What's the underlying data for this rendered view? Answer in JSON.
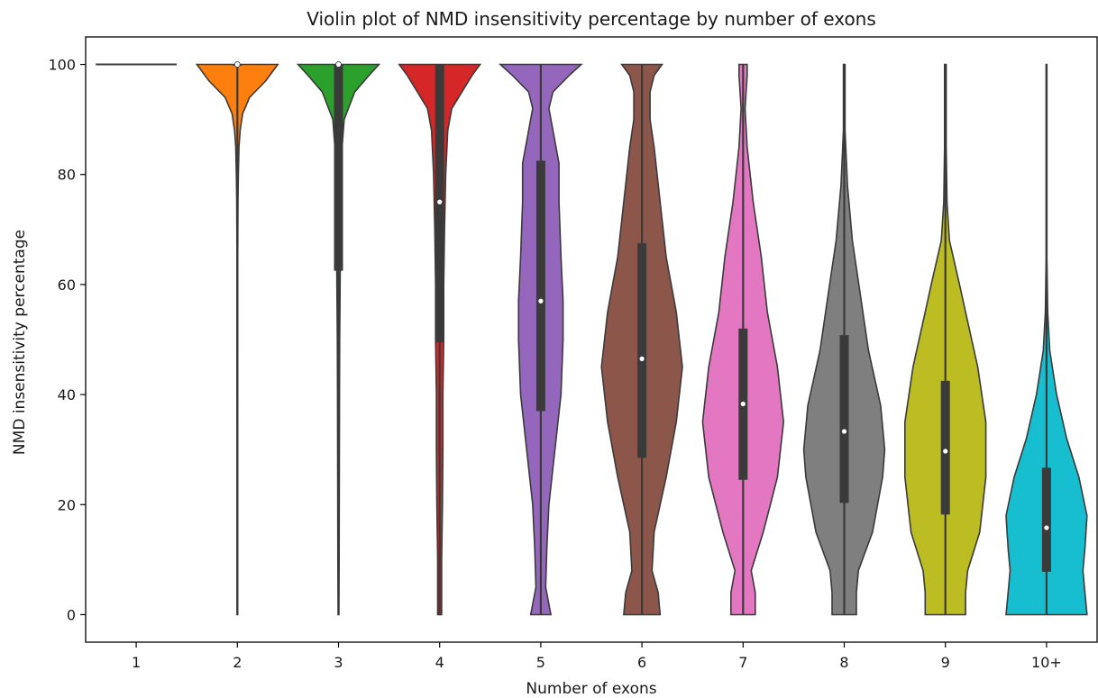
{
  "chart_data": {
    "type": "violin",
    "title": "Violin plot of NMD insensitivity percentage by number of exons",
    "xlabel": "Number of exons",
    "ylabel": "NMD insensitivity percentage",
    "ylim": [
      -5,
      105
    ],
    "yticks": [
      0,
      20,
      40,
      60,
      80,
      100
    ],
    "grid": false,
    "categories": [
      "1",
      "2",
      "3",
      "4",
      "5",
      "6",
      "7",
      "8",
      "9",
      "10+"
    ],
    "colors": [
      "#1f77b4",
      "#ff7f0e",
      "#2ca02c",
      "#d62728",
      "#9467bd",
      "#8c564b",
      "#e377c2",
      "#7f7f7f",
      "#bcbd22",
      "#17becf"
    ],
    "violins": [
      {
        "category": "1",
        "median": 100,
        "q1": 100,
        "q3": 100,
        "min": 100,
        "max": 100,
        "density": []
      },
      {
        "category": "2",
        "median": 100,
        "q1": 100,
        "q3": 100,
        "min": 0,
        "max": 100,
        "density": [
          [
            0,
            0.006
          ],
          [
            10,
            0.006
          ],
          [
            30,
            0.007
          ],
          [
            50,
            0.008
          ],
          [
            65,
            0.01
          ],
          [
            75,
            0.015
          ],
          [
            80,
            0.025
          ],
          [
            85,
            0.04
          ],
          [
            88,
            0.07
          ],
          [
            91,
            0.13
          ],
          [
            94,
            0.3
          ],
          [
            97,
            0.7
          ],
          [
            100,
            1.0
          ]
        ]
      },
      {
        "category": "3",
        "median": 100,
        "q1": 62.5,
        "q3": 100,
        "min": 0,
        "max": 100,
        "density": [
          [
            0,
            0.01
          ],
          [
            10,
            0.015
          ],
          [
            25,
            0.02
          ],
          [
            40,
            0.025
          ],
          [
            50,
            0.03
          ],
          [
            60,
            0.04
          ],
          [
            70,
            0.05
          ],
          [
            80,
            0.07
          ],
          [
            85,
            0.09
          ],
          [
            90,
            0.14
          ],
          [
            95,
            0.4
          ],
          [
            98,
            0.75
          ],
          [
            100,
            1.0
          ]
        ]
      },
      {
        "category": "4",
        "median": 75,
        "q1": 49.5,
        "q3": 100,
        "min": 0,
        "max": 100,
        "density": [
          [
            0,
            0.05
          ],
          [
            10,
            0.05
          ],
          [
            20,
            0.07
          ],
          [
            30,
            0.08
          ],
          [
            40,
            0.08
          ],
          [
            50,
            0.1
          ],
          [
            60,
            0.1
          ],
          [
            70,
            0.12
          ],
          [
            80,
            0.15
          ],
          [
            88,
            0.2
          ],
          [
            92,
            0.3
          ],
          [
            95,
            0.55
          ],
          [
            98,
            0.8
          ],
          [
            100,
            1.0
          ]
        ]
      },
      {
        "category": "5",
        "median": 57,
        "q1": 37,
        "q3": 82.5,
        "min": 0,
        "max": 100,
        "density": [
          [
            0,
            0.25
          ],
          [
            5,
            0.12
          ],
          [
            12,
            0.15
          ],
          [
            20,
            0.2
          ],
          [
            30,
            0.35
          ],
          [
            40,
            0.5
          ],
          [
            50,
            0.55
          ],
          [
            57,
            0.55
          ],
          [
            65,
            0.5
          ],
          [
            75,
            0.45
          ],
          [
            82,
            0.45
          ],
          [
            88,
            0.3
          ],
          [
            92,
            0.2
          ],
          [
            95,
            0.3
          ],
          [
            98,
            0.7
          ],
          [
            100,
            1.0
          ]
        ]
      },
      {
        "category": "6",
        "median": 46.5,
        "q1": 28.5,
        "q3": 67.5,
        "min": 0,
        "max": 100,
        "density": [
          [
            0,
            0.45
          ],
          [
            4,
            0.4
          ],
          [
            8,
            0.25
          ],
          [
            15,
            0.3
          ],
          [
            25,
            0.6
          ],
          [
            35,
            0.85
          ],
          [
            45,
            1.0
          ],
          [
            55,
            0.85
          ],
          [
            65,
            0.6
          ],
          [
            75,
            0.45
          ],
          [
            85,
            0.3
          ],
          [
            90,
            0.2
          ],
          [
            95,
            0.2
          ],
          [
            98,
            0.3
          ],
          [
            100,
            0.5
          ]
        ]
      },
      {
        "category": "7",
        "median": 38.3,
        "q1": 24.5,
        "q3": 52,
        "min": 0,
        "max": 100,
        "density": [
          [
            0,
            0.3
          ],
          [
            4,
            0.3
          ],
          [
            8,
            0.2
          ],
          [
            15,
            0.5
          ],
          [
            25,
            0.85
          ],
          [
            35,
            1.0
          ],
          [
            45,
            0.85
          ],
          [
            55,
            0.6
          ],
          [
            65,
            0.45
          ],
          [
            75,
            0.25
          ],
          [
            85,
            0.1
          ],
          [
            92,
            0.05
          ],
          [
            98,
            0.1
          ],
          [
            100,
            0.1
          ]
        ]
      },
      {
        "category": "8",
        "median": 33.3,
        "q1": 20.3,
        "q3": 50.8,
        "min": 0,
        "max": 100,
        "density": [
          [
            0,
            0.3
          ],
          [
            4,
            0.3
          ],
          [
            8,
            0.35
          ],
          [
            15,
            0.7
          ],
          [
            25,
            0.95
          ],
          [
            30,
            1.0
          ],
          [
            38,
            0.9
          ],
          [
            48,
            0.6
          ],
          [
            58,
            0.4
          ],
          [
            68,
            0.2
          ],
          [
            78,
            0.08
          ],
          [
            88,
            0.02
          ],
          [
            100,
            0.02
          ]
        ]
      },
      {
        "category": "9",
        "median": 29.7,
        "q1": 18.2,
        "q3": 42.5,
        "min": 0,
        "max": 100,
        "density": [
          [
            0,
            0.5
          ],
          [
            4,
            0.5
          ],
          [
            8,
            0.55
          ],
          [
            15,
            0.85
          ],
          [
            25,
            1.0
          ],
          [
            35,
            1.0
          ],
          [
            45,
            0.8
          ],
          [
            55,
            0.5
          ],
          [
            60,
            0.35
          ],
          [
            68,
            0.1
          ],
          [
            75,
            0.04
          ],
          [
            85,
            0.02
          ],
          [
            100,
            0.02
          ]
        ]
      },
      {
        "category": "10+",
        "median": 15.8,
        "q1": 7.8,
        "q3": 26.7,
        "min": 0,
        "max": 100,
        "density": [
          [
            0,
            1.0
          ],
          [
            4,
            0.95
          ],
          [
            8,
            0.9
          ],
          [
            12,
            0.95
          ],
          [
            18,
            1.0
          ],
          [
            25,
            0.8
          ],
          [
            32,
            0.5
          ],
          [
            40,
            0.25
          ],
          [
            48,
            0.08
          ],
          [
            55,
            0.03
          ],
          [
            65,
            0.01
          ],
          [
            80,
            0.01
          ],
          [
            100,
            0.01
          ]
        ]
      }
    ]
  }
}
